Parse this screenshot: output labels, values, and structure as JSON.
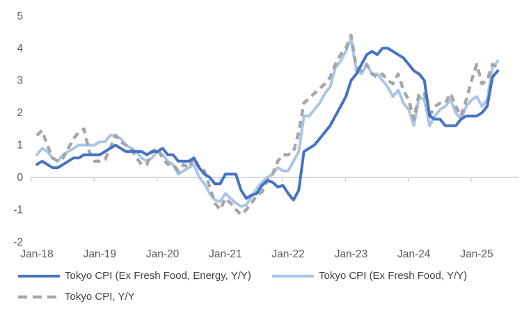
{
  "chart_data": {
    "type": "line",
    "title": "",
    "x_start": "Jan-2018",
    "x_end": "May-2025",
    "x_frequency": "monthly",
    "x_tick_labels": [
      "Jan-18",
      "Jan-19",
      "Jan-20",
      "Jan-21",
      "Jan-22",
      "Jan-23",
      "Jan-24",
      "Jan-25"
    ],
    "y_ticks": [
      5,
      4,
      3,
      2,
      1,
      0,
      -1,
      -2
    ],
    "ylim": [
      -2,
      5
    ],
    "grid": "zero axis line only",
    "legend_position": "bottom-left two columns",
    "axis_color": "#c8c8c8",
    "tick_label_color": "#595959",
    "series": [
      {
        "name": "Tokyo CPI (Ex Fresh Food, Energy, Y/Y)",
        "color": "#4472C4",
        "style": "solid",
        "values": [
          0.4,
          0.5,
          0.4,
          0.3,
          0.3,
          0.4,
          0.5,
          0.6,
          0.6,
          0.7,
          0.7,
          0.7,
          0.7,
          0.8,
          0.9,
          1.0,
          0.9,
          0.8,
          0.8,
          0.8,
          0.8,
          0.7,
          0.8,
          0.8,
          0.9,
          0.7,
          0.7,
          0.5,
          0.5,
          0.5,
          0.6,
          0.3,
          0.1,
          0.0,
          -0.2,
          -0.2,
          0.1,
          0.1,
          0.1,
          -0.4,
          -0.65,
          -0.55,
          -0.5,
          -0.25,
          -0.1,
          -0.15,
          -0.3,
          -0.25,
          -0.5,
          -0.7,
          -0.4,
          0.8,
          0.9,
          1.0,
          1.2,
          1.4,
          1.6,
          1.9,
          2.2,
          2.5,
          3.0,
          3.2,
          3.5,
          3.8,
          3.9,
          3.8,
          4.0,
          4.0,
          3.9,
          3.8,
          3.7,
          3.5,
          3.3,
          3.2,
          3.0,
          1.9,
          1.8,
          1.8,
          1.6,
          1.6,
          1.6,
          1.8,
          1.9,
          1.9,
          1.9,
          2.0,
          2.2,
          3.1,
          3.3
        ]
      },
      {
        "name": "Tokyo CPI (Ex Fresh Food, Y/Y)",
        "color": "#A9C5E8",
        "style": "solid",
        "values": [
          0.7,
          0.9,
          0.8,
          0.6,
          0.5,
          0.7,
          0.8,
          0.9,
          1.0,
          1.0,
          1.0,
          1.0,
          1.1,
          1.1,
          1.3,
          1.3,
          1.2,
          1.0,
          0.9,
          0.8,
          0.6,
          0.5,
          0.6,
          0.8,
          0.7,
          0.5,
          0.4,
          0.1,
          0.2,
          0.3,
          0.4,
          0.0,
          -0.2,
          -0.5,
          -0.7,
          -0.75,
          -0.5,
          -0.65,
          -0.8,
          -0.9,
          -0.85,
          -0.6,
          -0.35,
          -0.15,
          0.0,
          0.1,
          0.3,
          0.2,
          0.2,
          0.5,
          0.8,
          1.9,
          1.9,
          2.1,
          2.3,
          2.6,
          2.8,
          3.4,
          3.6,
          3.9,
          4.3,
          3.3,
          3.2,
          3.5,
          3.2,
          3.2,
          3.0,
          2.8,
          2.5,
          2.7,
          2.3,
          2.1,
          1.6,
          2.5,
          2.4,
          1.6,
          1.9,
          2.1,
          2.2,
          2.4,
          2.0,
          1.8,
          2.2,
          2.4,
          2.5,
          2.2,
          2.4,
          3.4,
          3.6
        ]
      },
      {
        "name": "Tokyo CPI, Y/Y",
        "color": "#A6A6A6",
        "style": "dashed",
        "values": [
          1.3,
          1.45,
          1.0,
          0.6,
          0.5,
          0.6,
          0.9,
          1.2,
          1.4,
          1.5,
          0.8,
          0.5,
          0.5,
          0.55,
          0.9,
          1.3,
          1.1,
          1.0,
          0.9,
          0.6,
          0.4,
          0.4,
          0.8,
          0.9,
          0.6,
          0.4,
          0.4,
          0.2,
          0.4,
          0.3,
          0.6,
          0.3,
          0.2,
          -0.3,
          -0.8,
          -1.0,
          -0.65,
          -0.8,
          -1.0,
          -1.15,
          -1.0,
          -0.8,
          -0.55,
          -0.45,
          -0.1,
          0.1,
          0.5,
          0.7,
          0.7,
          0.8,
          1.4,
          2.3,
          2.45,
          2.6,
          2.75,
          2.9,
          3.1,
          3.5,
          3.8,
          4.0,
          4.4,
          3.4,
          3.3,
          3.5,
          3.2,
          3.1,
          3.2,
          3.0,
          2.9,
          3.2,
          2.7,
          2.4,
          1.8,
          2.6,
          2.6,
          1.9,
          2.2,
          2.3,
          2.3,
          2.6,
          2.2,
          1.9,
          2.4,
          3.0,
          3.5,
          2.9,
          3.0,
          3.5,
          3.4
        ]
      }
    ]
  },
  "legend": {
    "items": [
      {
        "label": "Tokyo CPI (Ex Fresh Food, Energy, Y/Y)"
      },
      {
        "label": "Tokyo CPI (Ex Fresh Food, Y/Y)"
      },
      {
        "label": "Tokyo CPI, Y/Y"
      }
    ]
  }
}
